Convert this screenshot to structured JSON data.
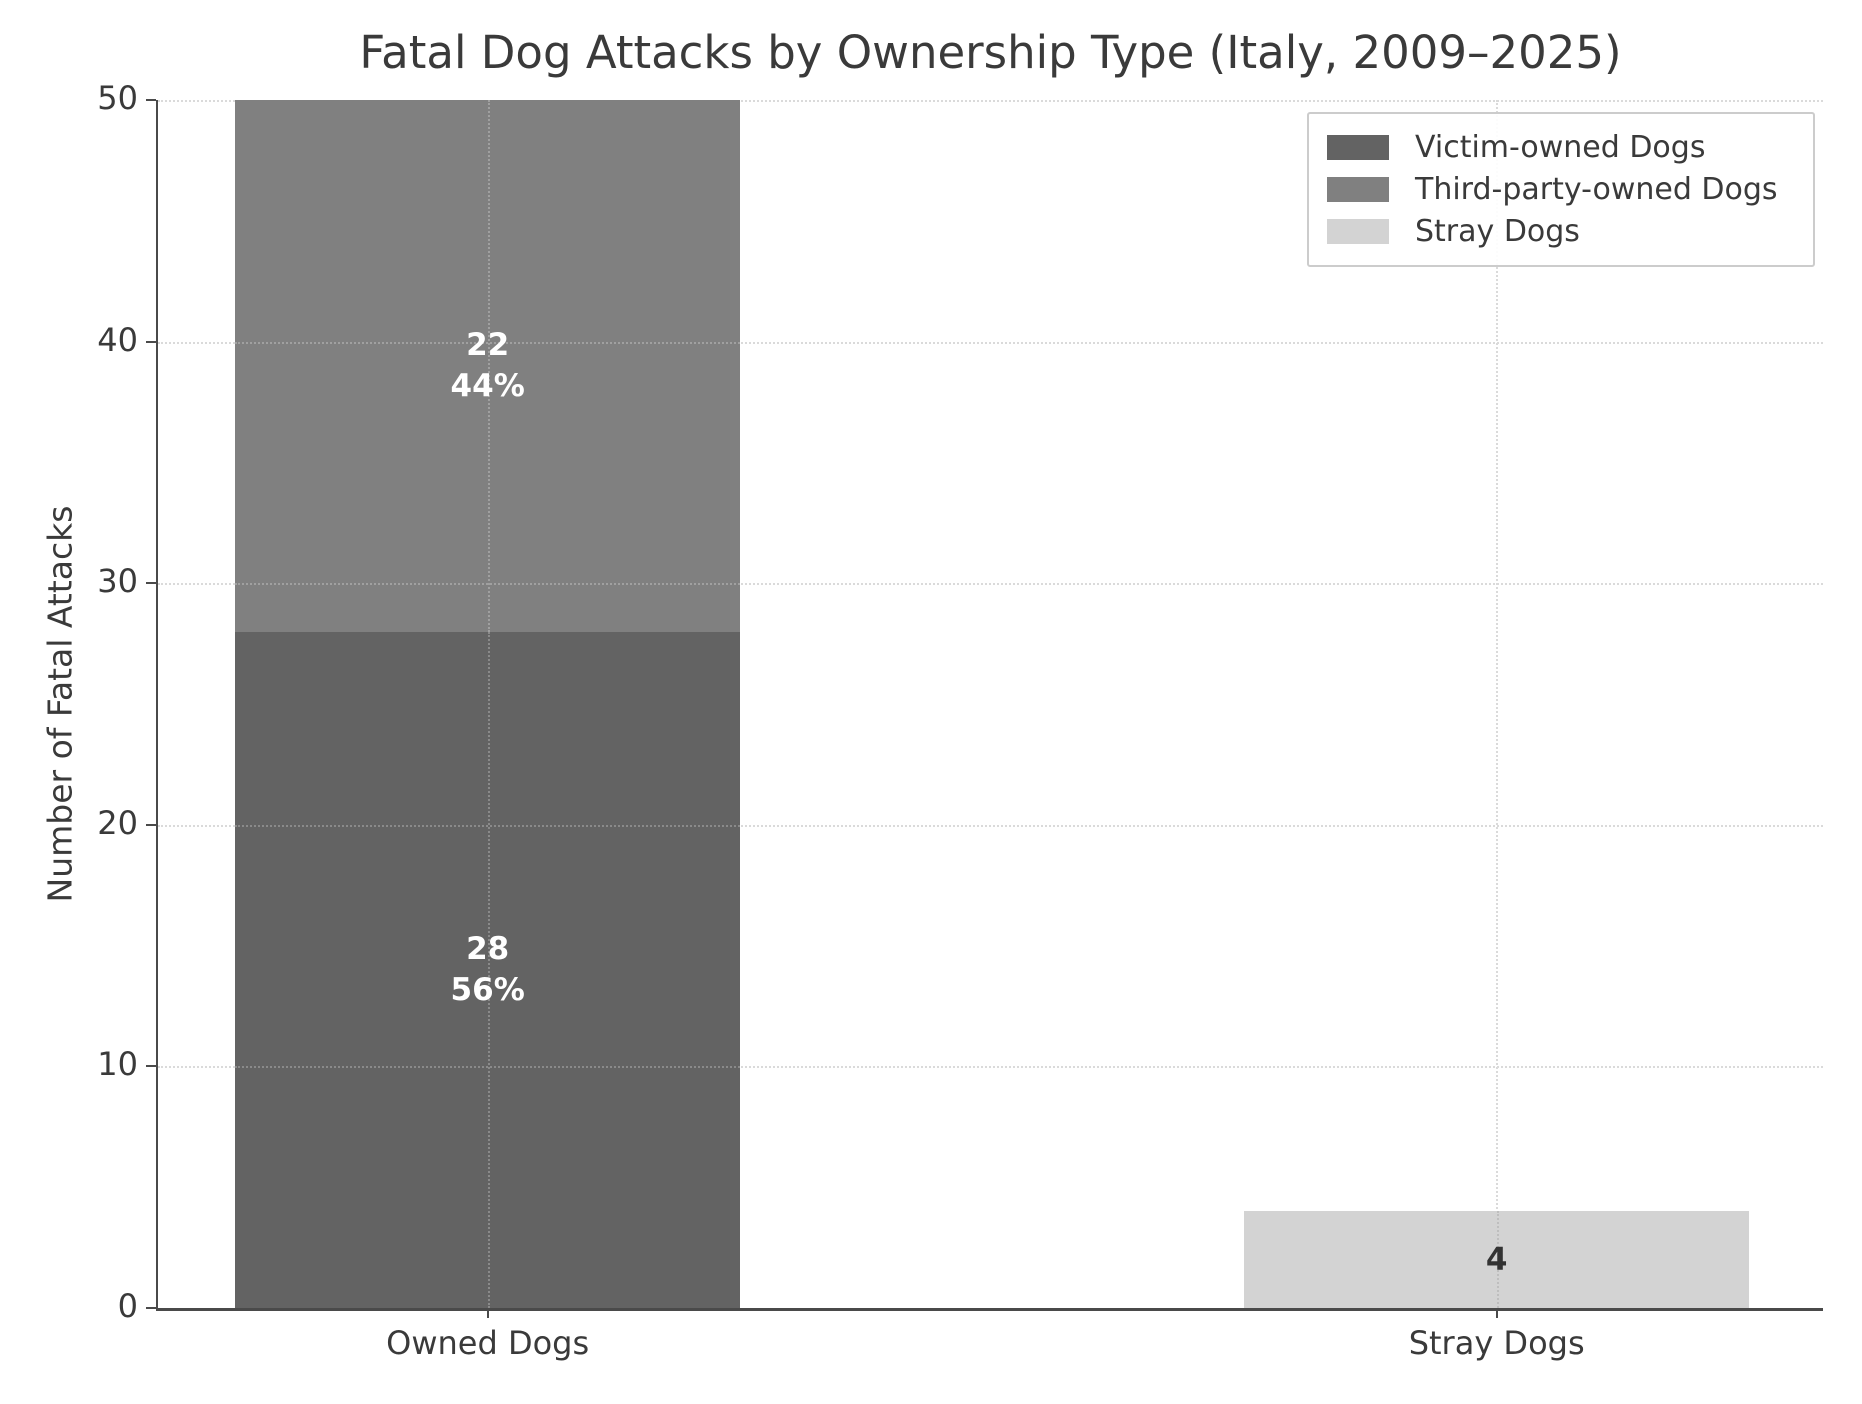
{
  "chart_data": {
    "type": "bar",
    "stacked": true,
    "title": "Fatal Dog Attacks by Ownership Type (Italy, 2009–2025)",
    "xlabel": "",
    "ylabel": "Number of Fatal Attacks",
    "ylim": [
      0,
      50
    ],
    "yticks": [
      0,
      10,
      20,
      30,
      40,
      50
    ],
    "grid": true,
    "grid_style": "dotted",
    "legend_position": "upper right",
    "categories": [
      "Owned Dogs",
      "Stray Dogs"
    ],
    "series": [
      {
        "name": "Victim-owned Dogs",
        "color": "#636363",
        "values": [
          28,
          0
        ]
      },
      {
        "name": "Third-party-owned Dogs",
        "color": "#808080",
        "values": [
          22,
          0
        ]
      },
      {
        "name": "Stray Dogs",
        "color": "#d3d3d3",
        "values": [
          0,
          4
        ]
      }
    ],
    "bar_labels": [
      {
        "category": "Owned Dogs",
        "segment": "Victim-owned Dogs",
        "lines": [
          "28",
          "56%"
        ],
        "color": "#ffffff"
      },
      {
        "category": "Owned Dogs",
        "segment": "Third-party-owned Dogs",
        "lines": [
          "22",
          "44%"
        ],
        "color": "#ffffff"
      },
      {
        "category": "Stray Dogs",
        "segment": "Stray Dogs",
        "lines": [
          "4"
        ],
        "color": "#333333"
      }
    ],
    "layout": {
      "bar_centers_pct": [
        19.8,
        80.4
      ],
      "bar_width_pct": 30.3,
      "axis_color": "#4a4a4a",
      "gridline_color": "#dadada"
    }
  }
}
